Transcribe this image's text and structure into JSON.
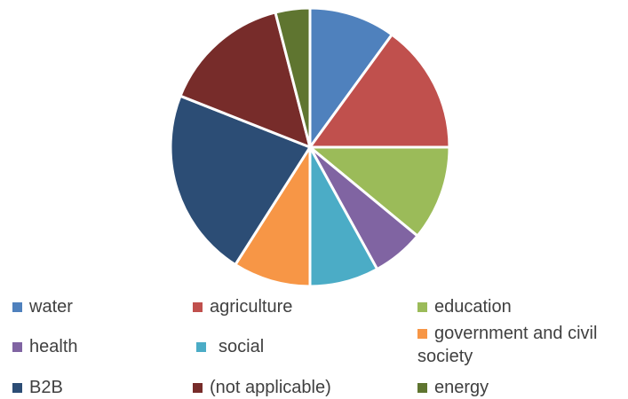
{
  "chart_data": {
    "type": "pie",
    "categories": [
      "water",
      "agriculture",
      "education",
      "health",
      "social",
      "government and civil society",
      "B2B",
      "(not applicable)",
      "energy"
    ],
    "values": [
      10,
      15,
      11,
      6,
      8,
      9,
      22,
      15,
      4
    ],
    "colors": [
      "#4f81bd",
      "#c0504d",
      "#9bbb59",
      "#8064a2",
      "#4bacc6",
      "#f79646",
      "#2c4d75",
      "#772c2a",
      "#5f7530"
    ],
    "start_angle_deg": 0,
    "direction": "clockwise",
    "legend": {
      "position": "bottom",
      "entries": [
        {
          "label": "water",
          "color": "#4f81bd"
        },
        {
          "label": "agriculture",
          "color": "#c0504d"
        },
        {
          "label": "education",
          "color": "#9bbb59"
        },
        {
          "label": "health",
          "color": "#8064a2"
        },
        {
          "label": "social",
          "color": "#4bacc6"
        },
        {
          "label": "government and civil society",
          "color": "#f79646"
        },
        {
          "label": "B2B",
          "color": "#2c4d75"
        },
        {
          "label": "(not applicable)",
          "color": "#772c2a"
        },
        {
          "label": "energy",
          "color": "#5f7530"
        }
      ]
    }
  }
}
